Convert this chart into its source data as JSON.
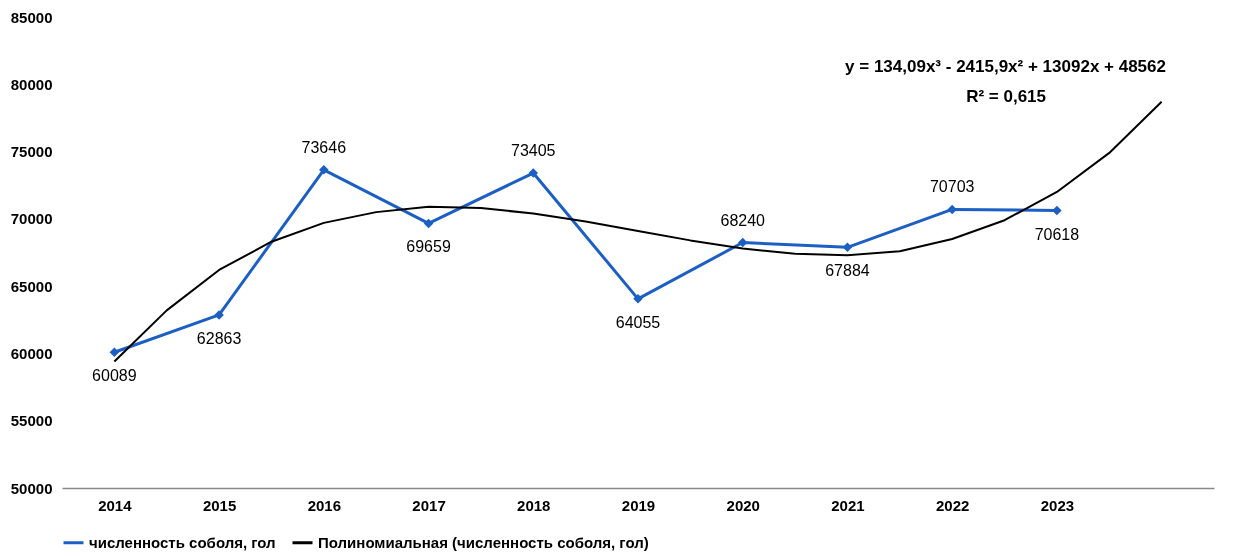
{
  "chart_data": {
    "type": "line",
    "x": [
      2014,
      2015,
      2016,
      2017,
      2018,
      2019,
      2020,
      2021,
      2022,
      2023
    ],
    "xlim": [
      2013.5,
      2024.5
    ],
    "xticks": [
      2014,
      2015,
      2016,
      2017,
      2018,
      2019,
      2020,
      2021,
      2022,
      2023
    ],
    "ylim": [
      50000,
      85000
    ],
    "yticks": [
      50000,
      55000,
      60000,
      65000,
      70000,
      75000,
      80000,
      85000
    ],
    "series": [
      {
        "name": "численность соболя, гол",
        "color": "#1c5fc4",
        "marker": "diamond",
        "values": [
          60089,
          62863,
          73646,
          69659,
          73405,
          64055,
          68240,
          67884,
          70703,
          70618
        ],
        "value_labels": [
          "60089",
          "62863",
          "73646",
          "69659",
          "73405",
          "64055",
          "68240",
          "67884",
          "70703",
          "70618"
        ]
      },
      {
        "name": "Полиномиальная (численность соболя, гол)",
        "color": "#000000",
        "marker": "none",
        "x": [
          2014,
          2014.5,
          2015,
          2015.5,
          2016,
          2016.5,
          2017,
          2017.5,
          2018,
          2018.5,
          2019,
          2019.5,
          2020,
          2020.5,
          2021,
          2021.5,
          2022,
          2022.5,
          2023,
          2023.5,
          2024
        ],
        "values": [
          59400,
          63200,
          66200,
          68300,
          69700,
          70500,
          70900,
          70800,
          70400,
          69800,
          69100,
          68400,
          67800,
          67400,
          67300,
          67600,
          68500,
          69900,
          72000,
          74900,
          78700
        ]
      }
    ],
    "grid": false,
    "legend": "bottom",
    "line_style": "solid",
    "annotations": [
      "y = 134,09x³ - 2415,9x² + 13092x + 48562",
      "R² = 0,615"
    ]
  }
}
